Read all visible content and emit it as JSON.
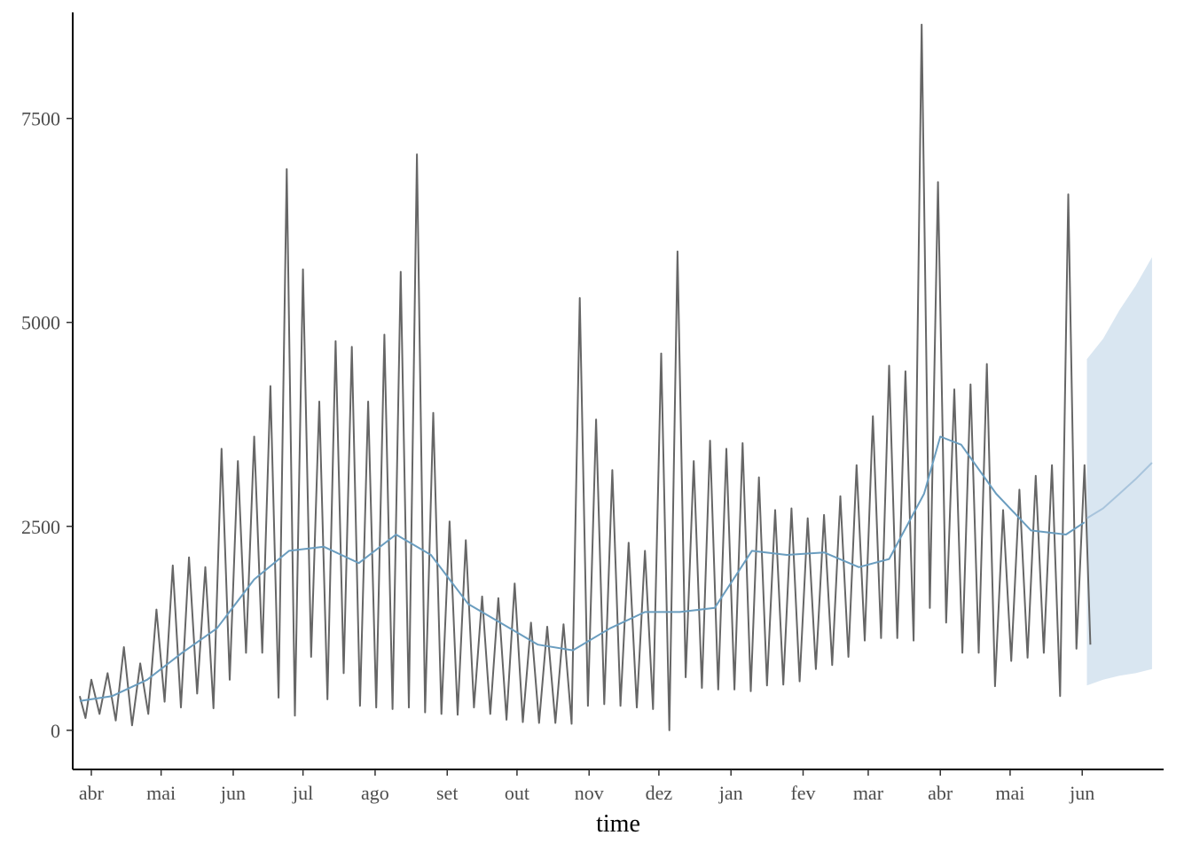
{
  "chart_data": {
    "type": "line",
    "title": "",
    "xlabel": "time",
    "ylabel": "",
    "x_range": [
      "2020-03-24",
      "2021-07-06"
    ],
    "ylim": [
      -480,
      8800
    ],
    "grid": false,
    "legend": "none",
    "x_ticks": [
      {
        "date": "2020-04-01",
        "label": "abr"
      },
      {
        "date": "2020-05-01",
        "label": "mai"
      },
      {
        "date": "2020-06-01",
        "label": "jun"
      },
      {
        "date": "2020-07-01",
        "label": "jul"
      },
      {
        "date": "2020-08-01",
        "label": "ago"
      },
      {
        "date": "2020-09-01",
        "label": "set"
      },
      {
        "date": "2020-10-01",
        "label": "out"
      },
      {
        "date": "2020-11-01",
        "label": "nov"
      },
      {
        "date": "2020-12-01",
        "label": "dez"
      },
      {
        "date": "2021-01-01",
        "label": "jan"
      },
      {
        "date": "2021-02-01",
        "label": "fev"
      },
      {
        "date": "2021-03-01",
        "label": "mar"
      },
      {
        "date": "2021-04-01",
        "label": "abr"
      },
      {
        "date": "2021-05-01",
        "label": "mai"
      },
      {
        "date": "2021-06-01",
        "label": "jun"
      }
    ],
    "y_ticks": [
      {
        "value": 0,
        "label": "0"
      },
      {
        "value": 2500,
        "label": "2500"
      },
      {
        "value": 5000,
        "label": "5000"
      },
      {
        "value": 7500,
        "label": "7500"
      }
    ],
    "observed": {
      "x": [
        "2020-03-27",
        "2020-04-01",
        "2020-04-08",
        "2020-04-15",
        "2020-04-22",
        "2020-04-29",
        "2020-05-06",
        "2020-05-13",
        "2020-05-20",
        "2020-05-27",
        "2020-06-03",
        "2020-06-10",
        "2020-06-17",
        "2020-06-24",
        "2020-07-01",
        "2020-07-08",
        "2020-07-15",
        "2020-07-22",
        "2020-07-29",
        "2020-08-05",
        "2020-08-12",
        "2020-08-19",
        "2020-08-26",
        "2020-09-02",
        "2020-09-09",
        "2020-09-16",
        "2020-09-23",
        "2020-09-30",
        "2020-10-07",
        "2020-10-14",
        "2020-10-21",
        "2020-10-28",
        "2020-11-04",
        "2020-11-11",
        "2020-11-18",
        "2020-11-25",
        "2020-12-02",
        "2020-12-09",
        "2020-12-16",
        "2020-12-23",
        "2020-12-30",
        "2021-01-06",
        "2021-01-13",
        "2021-01-20",
        "2021-01-27",
        "2021-02-03",
        "2021-02-10",
        "2021-02-17",
        "2021-02-24",
        "2021-03-03",
        "2021-03-10",
        "2021-03-17",
        "2021-03-24",
        "2021-03-31",
        "2021-04-07",
        "2021-04-14",
        "2021-04-21",
        "2021-04-28",
        "2021-05-05",
        "2021-05-12",
        "2021-05-19",
        "2021-05-26",
        "2021-06-02"
      ],
      "high": [
        420,
        620,
        700,
        1020,
        820,
        1480,
        2020,
        2120,
        2000,
        3450,
        3300,
        3600,
        4220,
        6880,
        5650,
        4030,
        4770,
        4700,
        4030,
        4850,
        5620,
        7060,
        3890,
        2560,
        2330,
        1640,
        1620,
        1800,
        1320,
        1270,
        1300,
        5300,
        3810,
        3190,
        2300,
        2200,
        4620,
        5870,
        3300,
        3550,
        3450,
        3520,
        3100,
        2700,
        2720,
        2600,
        2640,
        2870,
        3250,
        3850,
        4470,
        4400,
        8650,
        6720,
        4180,
        4240,
        4490,
        2700,
        2950,
        3120,
        3250,
        6570,
        3250
      ],
      "low": [
        150,
        200,
        120,
        60,
        200,
        350,
        280,
        450,
        270,
        620,
        950,
        950,
        400,
        180,
        900,
        380,
        700,
        300,
        280,
        260,
        280,
        220,
        200,
        190,
        280,
        200,
        130,
        100,
        90,
        90,
        80,
        300,
        320,
        300,
        280,
        260,
        0,
        650,
        520,
        500,
        500,
        480,
        550,
        560,
        600,
        750,
        800,
        900,
        1100,
        1130,
        1130,
        1100,
        1500,
        1320,
        950,
        950,
        540,
        850,
        890,
        950,
        420,
        1000,
        1050
      ]
    },
    "fitted": {
      "x": [
        "2020-03-27",
        "2020-04-10",
        "2020-04-25",
        "2020-05-10",
        "2020-05-25",
        "2020-06-10",
        "2020-06-25",
        "2020-07-10",
        "2020-07-25",
        "2020-08-10",
        "2020-08-25",
        "2020-09-10",
        "2020-09-25",
        "2020-10-10",
        "2020-10-25",
        "2020-11-10",
        "2020-11-25",
        "2020-12-10",
        "2020-12-25",
        "2021-01-10",
        "2021-01-25",
        "2021-02-10",
        "2021-02-25",
        "2021-03-10",
        "2021-03-25",
        "2021-04-01",
        "2021-04-10",
        "2021-04-25",
        "2021-05-10",
        "2021-05-25",
        "2021-06-02"
      ],
      "y": [
        360,
        420,
        620,
        950,
        1250,
        1850,
        2200,
        2250,
        2050,
        2400,
        2150,
        1550,
        1300,
        1050,
        980,
        1250,
        1450,
        1450,
        1500,
        2200,
        2150,
        2180,
        2000,
        2100,
        2900,
        3600,
        3500,
        2900,
        2450,
        2400,
        2550
      ]
    },
    "forecast": {
      "x": [
        "2021-06-03",
        "2021-06-10",
        "2021-06-17",
        "2021-06-24",
        "2021-07-01"
      ],
      "y": [
        2600,
        2720,
        2900,
        3080,
        3280
      ],
      "lower": [
        550,
        620,
        670,
        700,
        750
      ],
      "upper": [
        4550,
        4800,
        5150,
        5450,
        5800
      ]
    },
    "colors": {
      "observed": "#666666",
      "fitted": "#6a9dbf",
      "forecast_line": "#a8c4dc",
      "forecast_band": "#d9e6f1",
      "axis": "#000000"
    }
  }
}
